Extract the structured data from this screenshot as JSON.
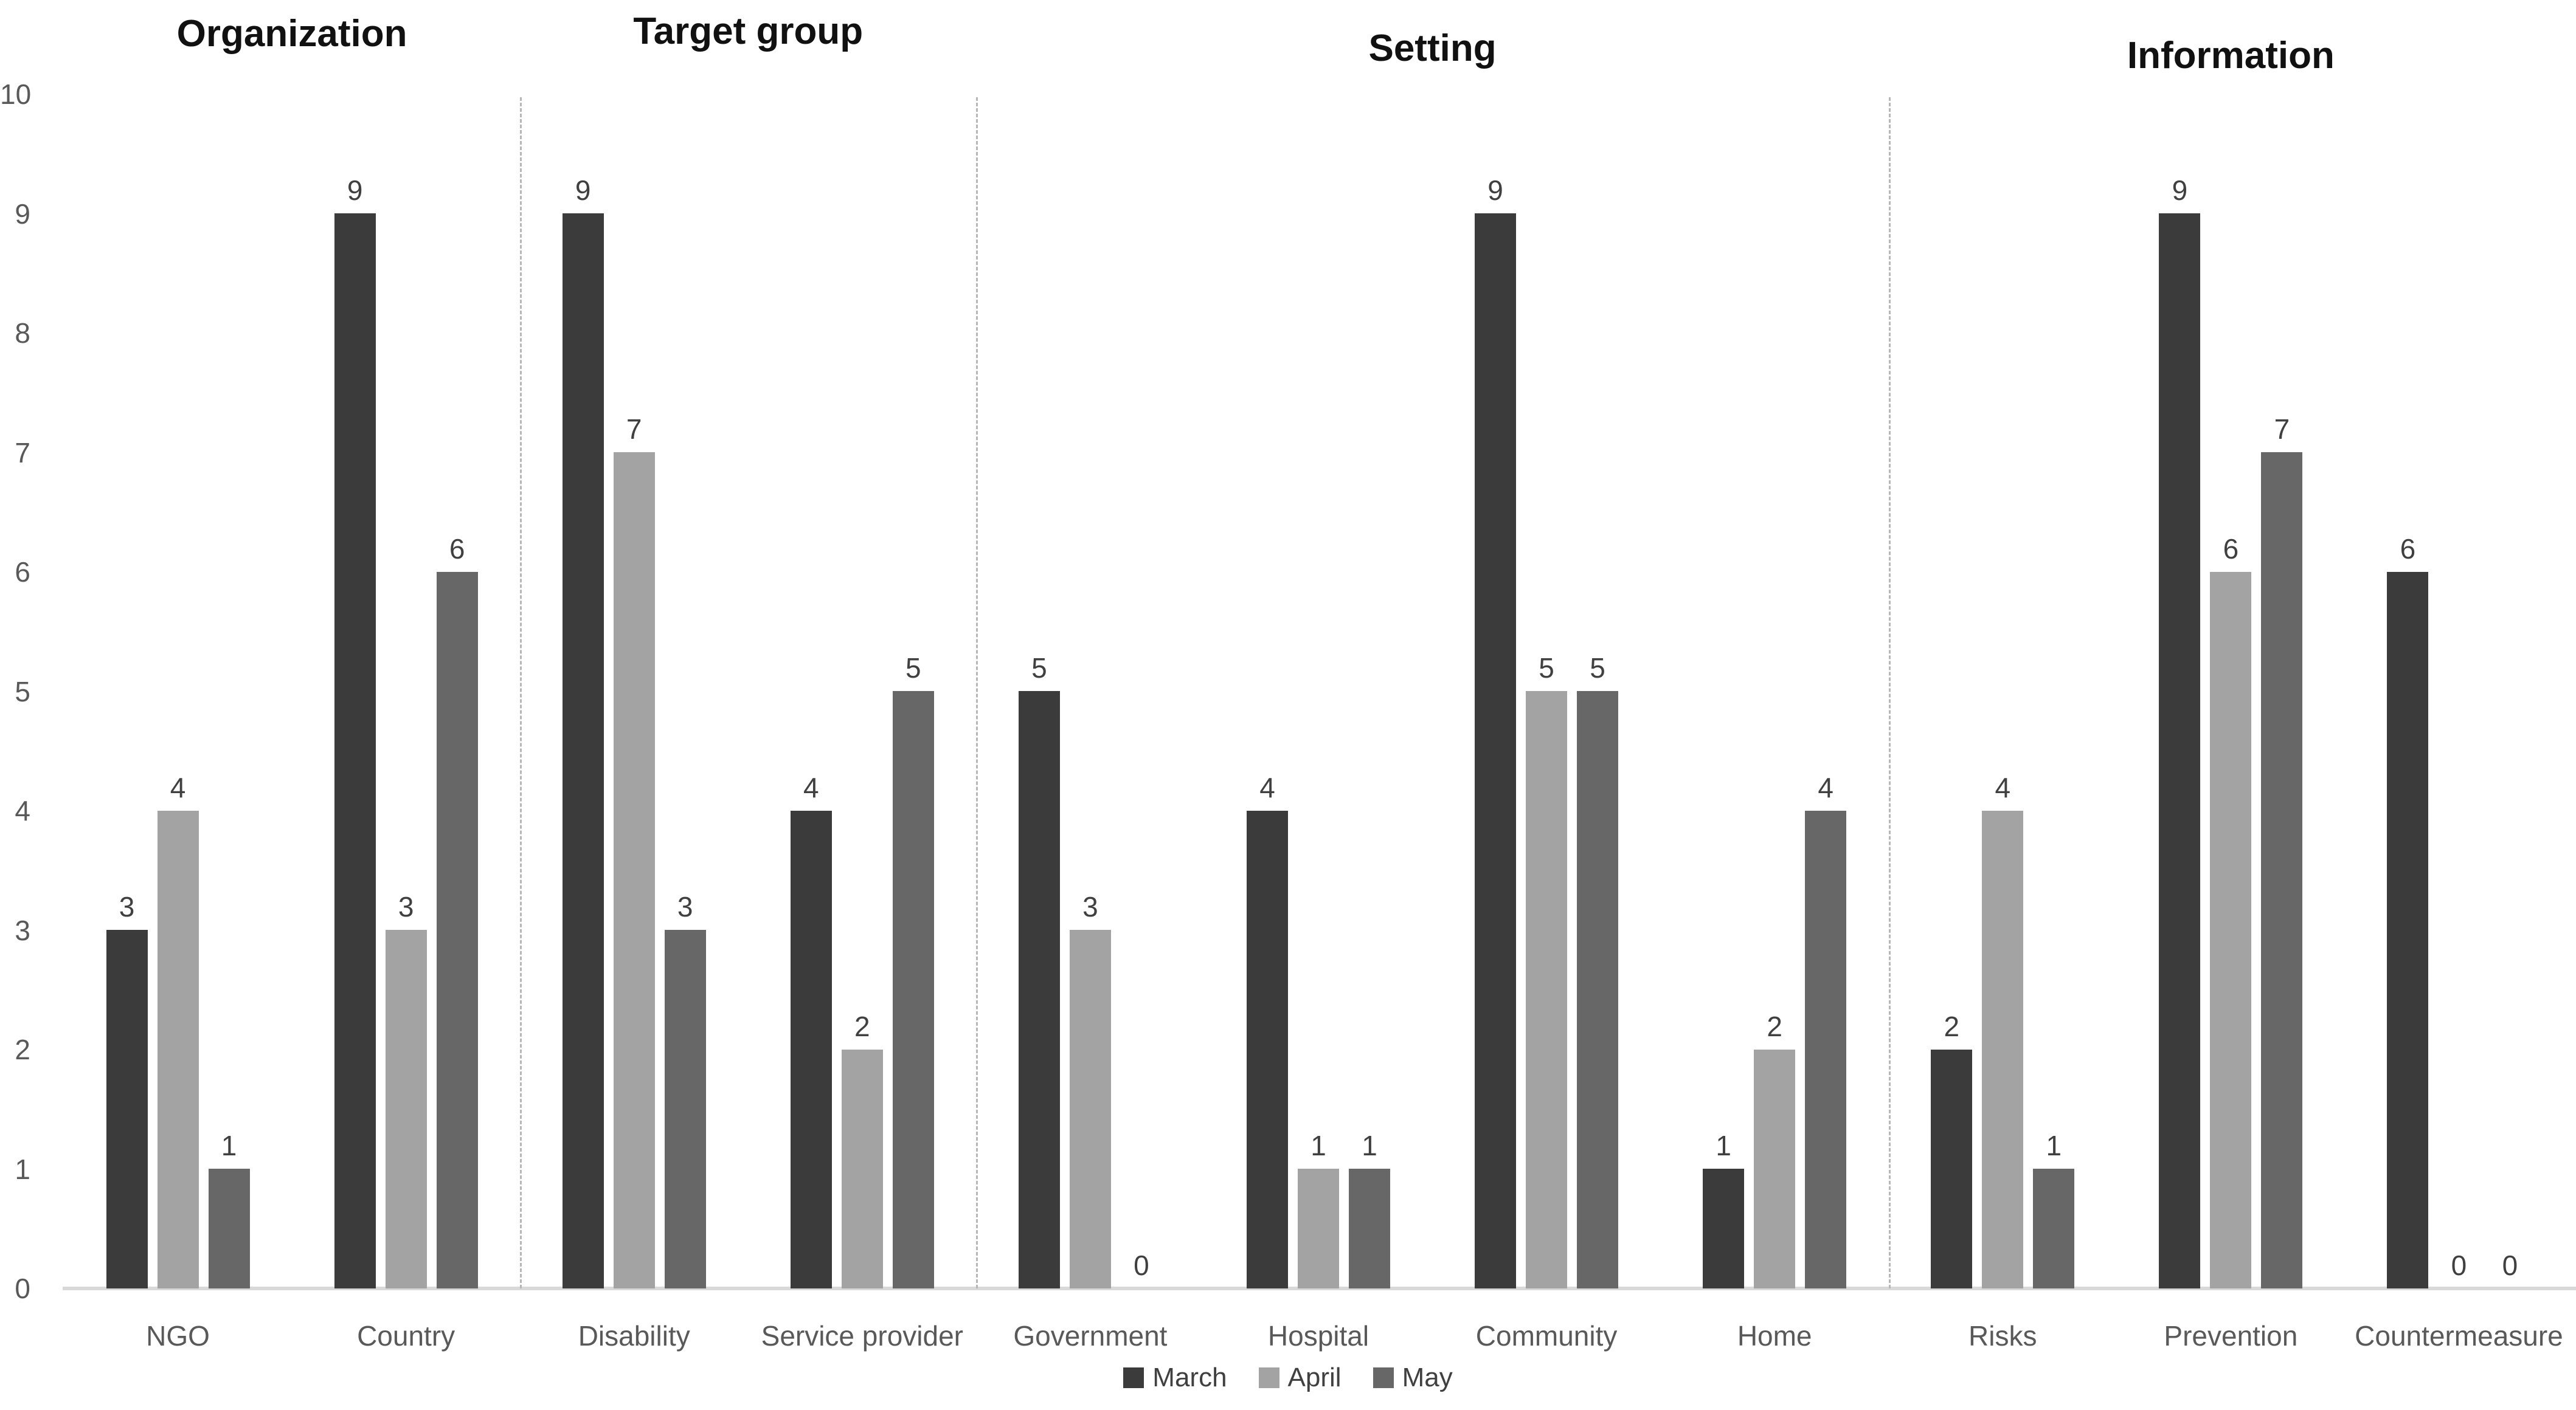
{
  "chart_data": {
    "type": "bar",
    "title": "",
    "sections": [
      {
        "label": "Organization",
        "categories": [
          "NGO",
          "Country"
        ]
      },
      {
        "label": "Target group",
        "categories": [
          "Disability",
          "Service provider"
        ]
      },
      {
        "label": "Setting",
        "categories": [
          "Government",
          "Hospital",
          "Community",
          "Home"
        ]
      },
      {
        "label": "Information",
        "categories": [
          "Risks",
          "Prevention",
          "Countermeasure"
        ]
      }
    ],
    "categories": [
      "NGO",
      "Country",
      "Disability",
      "Service provider",
      "Government",
      "Hospital",
      "Community",
      "Home",
      "Risks",
      "Prevention",
      "Countermeasure"
    ],
    "series": [
      {
        "name": "March",
        "color": "#3b3b3b",
        "values": [
          3,
          9,
          9,
          4,
          5,
          4,
          9,
          1,
          2,
          9,
          6
        ]
      },
      {
        "name": "April",
        "color": "#a3a3a3",
        "values": [
          4,
          3,
          7,
          2,
          3,
          1,
          5,
          2,
          4,
          6,
          0
        ]
      },
      {
        "name": "May",
        "color": "#676767",
        "values": [
          1,
          6,
          3,
          5,
          0,
          1,
          5,
          4,
          1,
          7,
          0
        ]
      }
    ],
    "ylim": [
      0,
      10
    ],
    "yticks": [
      0,
      1,
      2,
      3,
      4,
      5,
      6,
      7,
      8,
      9,
      10
    ],
    "grid": false,
    "data_labels": true,
    "legend_position": "bottom-center",
    "separators_before_category": [
      2,
      4,
      8
    ],
    "colors": {
      "axis_line": "#d9d9d9",
      "separator": "#b7b7b7",
      "tick_label": "#595959",
      "category_label": "#595959",
      "data_label": "#404040",
      "section_title": "#111111",
      "legend_text": "#404040",
      "background": "#ffffff"
    }
  }
}
